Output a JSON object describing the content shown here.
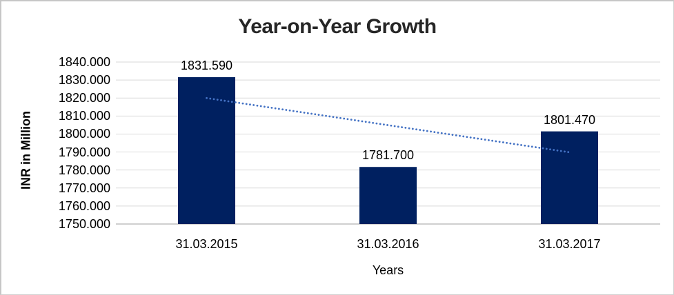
{
  "frame": {
    "background": "#FFFFFF",
    "border_color": "#C6C6C6"
  },
  "chart_data": {
    "type": "bar",
    "title": "Year-on-Year Growth",
    "xlabel": "Years",
    "ylabel": "INR in Million",
    "categories": [
      "31.03.2015",
      "31.03.2016",
      "31.03.2017"
    ],
    "values": [
      1831.59,
      1781.7,
      1801.47
    ],
    "data_labels": [
      "1831.590",
      "1781.700",
      "1801.470"
    ],
    "ylim": [
      1750,
      1840
    ],
    "ytick_step": 10,
    "ytick_labels": [
      "1840.000",
      "1830.000",
      "1820.000",
      "1810.000",
      "1800.000",
      "1790.000",
      "1780.000",
      "1770.000",
      "1760.000",
      "1750.000"
    ],
    "grid": true,
    "legend": "none",
    "bar_color": "#002060",
    "gridline_color": "#D9D9D9",
    "axisline_color": "#BFBFBF",
    "title_color": "#262626",
    "label_color": "#000000",
    "trendline": {
      "type": "linear",
      "style": "dotted",
      "color": "#4472C4",
      "start_value": 1819.98,
      "end_value": 1789.86
    }
  }
}
